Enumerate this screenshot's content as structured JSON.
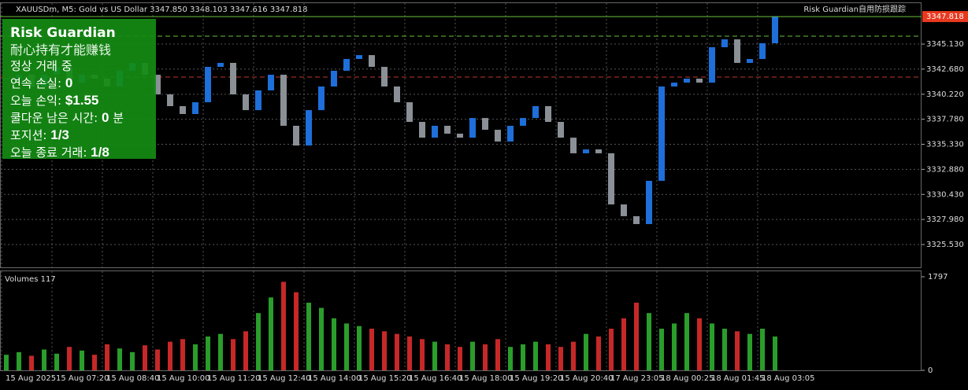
{
  "header": {
    "symbol": "XAUUSDm, M5:  Gold vs US Dollar  3347.850 3348.103 3347.616 3347.818",
    "indicator": "Risk Guardian自用防损跟踪"
  },
  "panel": {
    "title": "Risk Guardian",
    "subtitle": "耐心持有才能赚钱",
    "status": "정상 거래 중",
    "rows": [
      {
        "label": "연속 손실:",
        "value": "0"
      },
      {
        "label": "오늘 손익:",
        "value": "$1.55"
      },
      {
        "label": "쿨다운 남은 시간:",
        "value": "0",
        "unit": "분"
      },
      {
        "label": "포지션:",
        "value": "1/3"
      },
      {
        "label": "오늘 종료 거래:",
        "value": "1/8"
      }
    ]
  },
  "chart_data": [
    {
      "type": "candlestick",
      "up_color": "#1e6fd9",
      "down_color": "#8a9096",
      "values": [
        3341.75,
        3342.13,
        3340.98,
        3342.13,
        3342.9,
        3341.36,
        3342.13,
        3341.75,
        3340.98,
        3342.52,
        3343.29,
        3342.13,
        3340.21,
        3339.06,
        3338.29,
        3339.44,
        3342.9,
        3343.29,
        3340.21,
        3338.67,
        3340.6,
        3342.13,
        3337.14,
        3335.21,
        3338.67,
        3340.98,
        3342.52,
        3343.67,
        3344.05,
        3342.9,
        3340.98,
        3339.44,
        3337.52,
        3335.98,
        3337.14,
        3336.37,
        3335.98,
        3337.9,
        3336.75,
        3335.6,
        3337.14,
        3337.9,
        3339.06,
        3337.52,
        3335.98,
        3334.45,
        3334.83,
        3334.45,
        3329.45,
        3328.3,
        3327.53,
        3331.76,
        3340.98,
        3341.36,
        3341.75,
        3341.36,
        3344.82,
        3345.59,
        3343.29,
        3343.67,
        3345.21,
        3347.82
      ],
      "x_labels": [
        "15 Aug 2025",
        "15 Aug 07:20",
        "15 Aug 08:40",
        "15 Aug 10:00",
        "15 Aug 11:20",
        "15 Aug 12:40",
        "15 Aug 14:00",
        "15 Aug 15:20",
        "15 Aug 16:40",
        "15 Aug 18:00",
        "15 Aug 19:20",
        "15 Aug 20:40",
        "17 Aug 23:05",
        "18 Aug 00:25",
        "18 Aug 01:45",
        "18 Aug 03:05"
      ],
      "ylim": [
        3323.3,
        3347.9
      ],
      "yticks": [
        {
          "value": 3345.13,
          "label": "3345.130"
        },
        {
          "value": 3342.68,
          "label": "3342.680"
        },
        {
          "value": 3340.22,
          "label": "3340.220"
        },
        {
          "value": 3337.78,
          "label": "3337.780"
        },
        {
          "value": 3335.33,
          "label": "3335.330"
        },
        {
          "value": 3332.88,
          "label": "3332.880"
        },
        {
          "value": 3330.43,
          "label": "3330.430"
        },
        {
          "value": 3327.98,
          "label": "3327.980"
        },
        {
          "value": 3325.53,
          "label": "3325.530"
        }
      ],
      "last_price": 3347.818,
      "last_color": "#e8391f",
      "levels": [
        {
          "value": 3345.9,
          "color": "#6cbf3c"
        },
        {
          "value": 3341.9,
          "color": "#c0392b"
        }
      ],
      "grid": true
    },
    {
      "type": "bar",
      "title": "Volumes 117",
      "up_color": "#2a9d2a",
      "down_color": "#c62828",
      "values": [
        300,
        350,
        280,
        400,
        320,
        450,
        380,
        300,
        500,
        420,
        350,
        480,
        400,
        550,
        600,
        500,
        650,
        700,
        600,
        750,
        1100,
        1400,
        1700,
        1500,
        1300,
        1200,
        1000,
        900,
        850,
        800,
        750,
        700,
        650,
        600,
        550,
        500,
        450,
        550,
        500,
        600,
        450,
        500,
        550,
        500,
        450,
        550,
        700,
        650,
        800,
        1000,
        1300,
        1100,
        800,
        900,
        1100,
        1000,
        900,
        800,
        750,
        700,
        800,
        650
      ],
      "ylim": [
        0,
        1797
      ],
      "yticks": [
        1797,
        0
      ]
    }
  ]
}
